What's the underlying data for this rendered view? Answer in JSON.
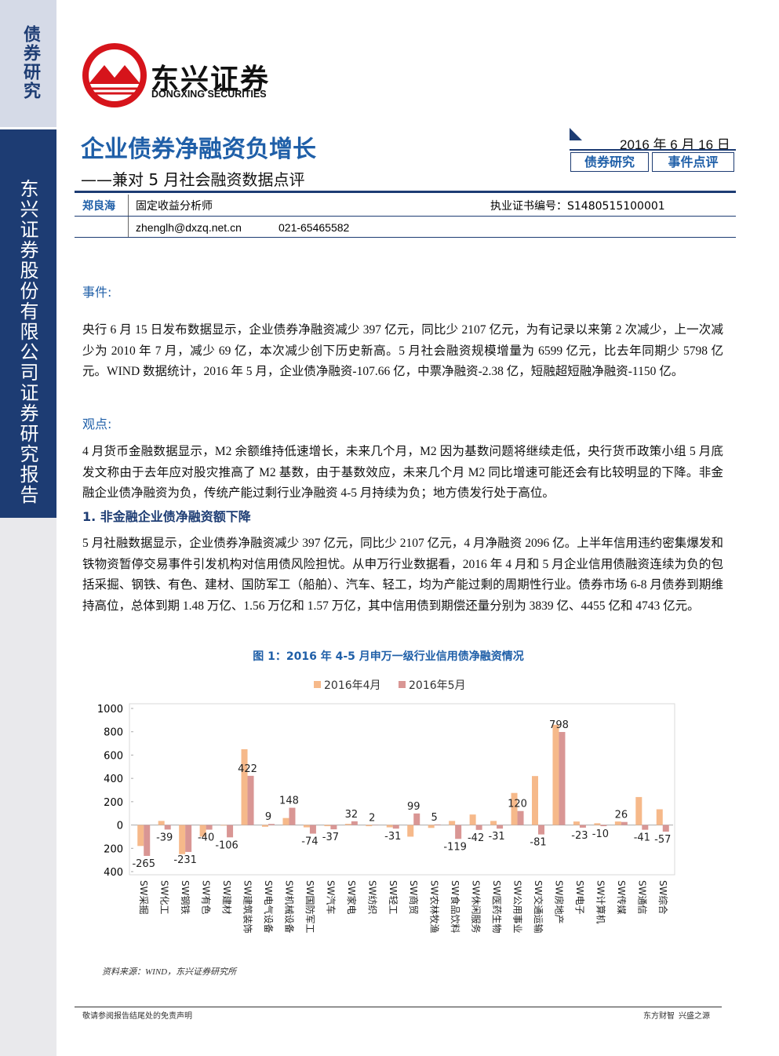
{
  "sidebar": {
    "category": "债券研究",
    "company": "东兴证券股份有限公司证券研究报告"
  },
  "header": {
    "logo_cn": "东兴证券",
    "logo_en": "DONGXING SECURITIES",
    "title": "企业债券净融资负增长",
    "subtitle": "——兼对 5 月社会融资数据点评",
    "date": "2016 年 6 月 16 日",
    "tags": [
      "债券研究",
      "事件点评"
    ]
  },
  "author": {
    "name": "郑良海",
    "role": "固定收益分析师",
    "license": "执业证书编号：S1480515100001",
    "email": "zhenglh@dxzq.net.cn",
    "phone": "021-65465582"
  },
  "sections": [
    {
      "heading": "事件:",
      "text": "央行 6 月 15 日发布数据显示，企业债券净融资减少 397 亿元，同比少 2107 亿元，为有记录以来第 2 次减少，上一次减少为 2010 年 7 月，减少 69 亿，本次减少创下历史新高。5 月社会融资规模增量为 6599 亿元，比去年同期少 5798 亿元。WIND 数据统计，2016 年 5 月，企业债净融资-107.66 亿，中票净融资-2.38 亿，短融超短融净融资-1150 亿。"
    },
    {
      "heading": "观点:",
      "text": "4 月货币金融数据显示，M2 余额维持低速增长，未来几个月，M2 因为基数问题将继续走低，央行货币政策小组 5 月底发文称由于去年应对股灾推高了 M2 基数，由于基数效应，未来几个月 M2 同比增速可能还会有比较明显的下降。非金融企业债净融资为负，传统产能过剩行业净融资 4-5 月持续为负；地方债发行处于高位。"
    },
    {
      "heading": "1. 非金融企业债净融资额下降",
      "text": "5 月社融数据显示，企业债券净融资减少 397 亿元，同比少 2107 亿元，4 月净融资 2096 亿。上半年信用违约密集爆发和铁物资暂停交易事件引发机构对信用债风险担忧。从申万行业数据看，2016 年 4 月和 5 月企业信用债融资连续为负的包括采掘、钢铁、有色、建材、国防军工（船舶）、汽车、轻工，均为产能过剩的周期性行业。债券市场 6-8 月债券到期维持高位，总体到期 1.48 万亿、1.56 万亿和 1.57 万亿，其中信用债到期偿还量分别为 3839 亿、4455 亿和 4743 亿元。"
    }
  ],
  "chart_data": {
    "type": "bar",
    "title": "图 1：2016 年 4-5 月申万一级行业信用债净融资情况",
    "source": "资料来源：WIND，东兴证券研究所",
    "categories": [
      "SW采掘",
      "SW化工",
      "SW钢铁",
      "SW有色",
      "SW建材",
      "SW建筑装饰",
      "SW电气设备",
      "SW机械设备",
      "SW国防军工",
      "SW汽车",
      "SW家电",
      "SW纺织",
      "SW轻工",
      "SW商贸",
      "SW农林牧渔",
      "SW食品饮料",
      "SW休闲服务",
      "SW医药生物",
      "SW公用事业",
      "SW交通运输",
      "SW房地产",
      "SW电子",
      "SW计算机",
      "SW传媒",
      "SW通信",
      "SW综合"
    ],
    "series": [
      {
        "name": "2016年4月",
        "color": "#f6b98a",
        "values": [
          -180,
          35,
          -250,
          -100,
          -5,
          650,
          -15,
          60,
          -20,
          -10,
          10,
          -10,
          -20,
          -100,
          -25,
          35,
          90,
          35,
          275,
          420,
          860,
          30,
          15,
          30,
          240,
          135
        ]
      },
      {
        "name": "2016年5月",
        "color": "#d99694",
        "values": [
          -265,
          -39,
          -231,
          -40,
          -106,
          422,
          9,
          148,
          -74,
          -37,
          32,
          2,
          -31,
          99,
          5,
          -119,
          -42,
          -31,
          120,
          -81,
          798,
          -23,
          -10,
          26,
          -41,
          -57
        ],
        "labeled": true
      }
    ],
    "ylim": [
      -400,
      1000
    ],
    "yticks": [
      {
        "value": -400,
        "label": "400"
      },
      {
        "value": -200,
        "label": "200"
      },
      0,
      200,
      400,
      600,
      800,
      1000
    ],
    "grid": false,
    "legend": "top"
  },
  "footer": {
    "left": "敬请参阅报告结尾处的免责声明",
    "right": "东方财智  兴盛之源"
  }
}
